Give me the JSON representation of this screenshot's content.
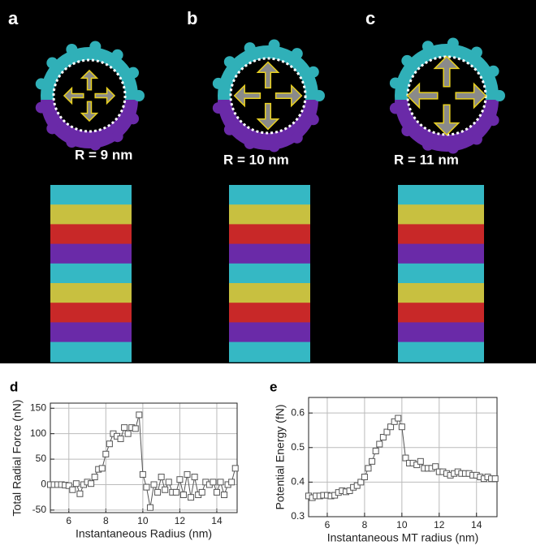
{
  "panels": [
    {
      "label": "a",
      "caption": "R = 9 nm"
    },
    {
      "label": "b",
      "caption": "R = 10 nm"
    },
    {
      "label": "c",
      "caption": "R = 11 nm"
    }
  ],
  "chart_data": [
    {
      "type": "line",
      "panel_label": "d",
      "xlabel": "Instantaneous Radius (nm)",
      "ylabel": "Total Radial Force (nN)",
      "x": [
        5.0,
        5.2,
        5.4,
        5.6,
        5.8,
        6.0,
        6.2,
        6.4,
        6.6,
        6.8,
        7.0,
        7.2,
        7.4,
        7.6,
        7.8,
        8.0,
        8.2,
        8.4,
        8.6,
        8.8,
        9.0,
        9.2,
        9.4,
        9.6,
        9.8,
        10.0,
        10.2,
        10.4,
        10.6,
        10.8,
        11.0,
        11.2,
        11.4,
        11.6,
        11.8,
        12.0,
        12.2,
        12.4,
        12.6,
        12.8,
        13.0,
        13.2,
        13.4,
        13.6,
        13.8,
        14.0,
        14.2,
        14.4,
        14.6,
        14.8,
        15.0
      ],
      "values": [
        0,
        0,
        0,
        0,
        -1,
        -2,
        -10,
        2,
        -18,
        0,
        5,
        2,
        15,
        30,
        32,
        60,
        80,
        100,
        95,
        90,
        112,
        100,
        112,
        110,
        137,
        20,
        -5,
        -45,
        0,
        -15,
        15,
        -10,
        5,
        -15,
        -15,
        10,
        -20,
        20,
        -25,
        15,
        -20,
        -15,
        5,
        0,
        5,
        -15,
        5,
        -20,
        0,
        5,
        32
      ],
      "color": "#555555",
      "xlim": [
        5,
        15.1
      ],
      "xticks": [
        6,
        8,
        10,
        12,
        14
      ],
      "ylim": [
        -55,
        160
      ],
      "yticks": [
        -50,
        0,
        50,
        100,
        150
      ],
      "grid": true
    },
    {
      "type": "line",
      "panel_label": "e",
      "xlabel": "Instantaneous MT radius (nm)",
      "ylabel": "Potential Energy (fN)",
      "x": [
        5.0,
        5.2,
        5.4,
        5.6,
        5.8,
        6.0,
        6.2,
        6.4,
        6.6,
        6.8,
        7.0,
        7.2,
        7.4,
        7.6,
        7.8,
        8.0,
        8.2,
        8.4,
        8.6,
        8.8,
        9.0,
        9.2,
        9.4,
        9.6,
        9.8,
        10.0,
        10.2,
        10.4,
        10.6,
        10.8,
        11.0,
        11.2,
        11.4,
        11.6,
        11.8,
        12.0,
        12.2,
        12.4,
        12.6,
        12.8,
        13.0,
        13.2,
        13.4,
        13.6,
        13.8,
        14.0,
        14.2,
        14.4,
        14.6,
        14.8,
        15.0
      ],
      "values": [
        0.36,
        0.355,
        0.36,
        0.36,
        0.362,
        0.362,
        0.36,
        0.362,
        0.37,
        0.375,
        0.372,
        0.375,
        0.385,
        0.39,
        0.4,
        0.415,
        0.44,
        0.46,
        0.49,
        0.51,
        0.53,
        0.545,
        0.56,
        0.575,
        0.585,
        0.56,
        0.47,
        0.455,
        0.455,
        0.45,
        0.46,
        0.44,
        0.44,
        0.44,
        0.445,
        0.43,
        0.43,
        0.425,
        0.42,
        0.425,
        0.43,
        0.425,
        0.425,
        0.425,
        0.42,
        0.42,
        0.415,
        0.41,
        0.415,
        0.41,
        0.41
      ],
      "color": "#555555",
      "xlim": [
        5,
        15.1
      ],
      "xticks": [
        6,
        8,
        10,
        12,
        14
      ],
      "ylim": [
        0.3,
        0.645
      ],
      "yticks": [
        0.3,
        0.4,
        0.5,
        0.6
      ],
      "grid": true
    }
  ]
}
